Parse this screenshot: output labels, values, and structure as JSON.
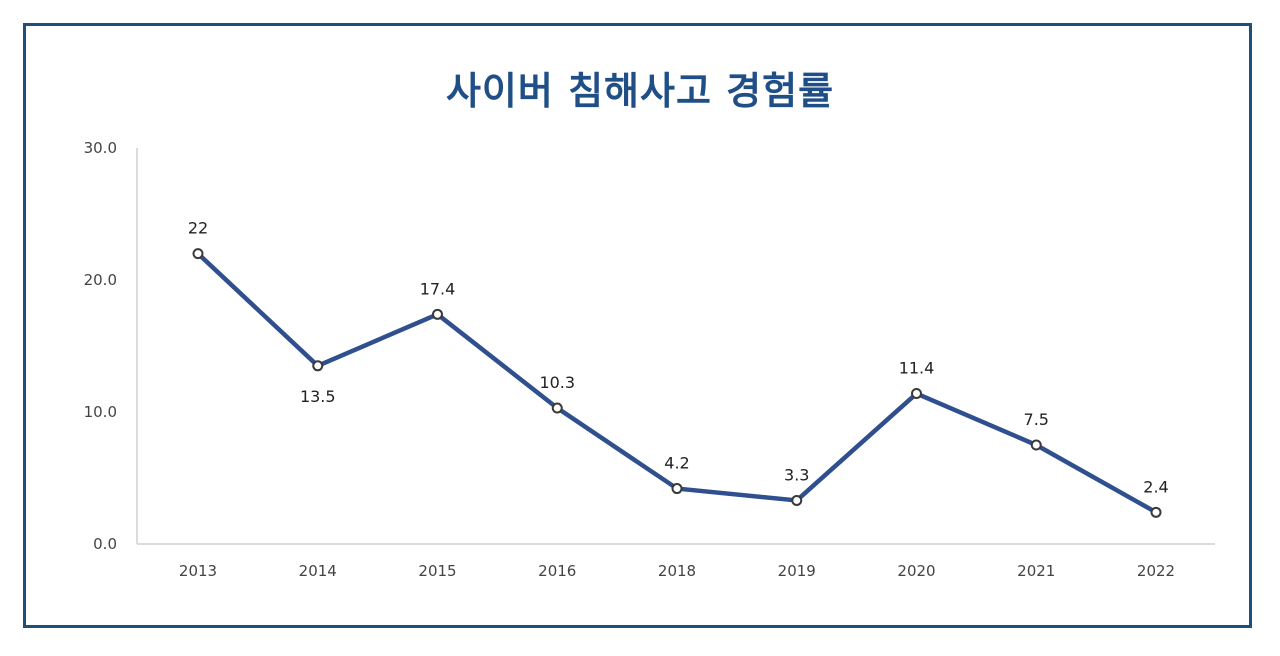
{
  "chart_data": {
    "type": "line",
    "title": "사이버 침해사고 경험률",
    "categories": [
      "2013",
      "2014",
      "2015",
      "2016",
      "2018",
      "2019",
      "2020",
      "2021",
      "2022"
    ],
    "values": [
      22,
      13.5,
      17.4,
      10.3,
      4.2,
      3.3,
      11.4,
      7.5,
      2.4
    ],
    "value_labels": [
      "22",
      "13.5",
      "17.4",
      "10.3",
      "4.2",
      "3.3",
      "11.4",
      "7.5",
      "2.4"
    ],
    "label_positions": [
      "above",
      "below",
      "above",
      "above",
      "above",
      "above",
      "above",
      "above",
      "above"
    ],
    "yticks": [
      "0.0",
      "10.0",
      "20.0",
      "30.0"
    ],
    "ylim": [
      0,
      30
    ],
    "xlabel": "",
    "ylabel": "",
    "grid": false,
    "legend": "none",
    "colors": {
      "line": "#2f4f8f",
      "title": "#1f4f86",
      "frame": "#1e4f7d",
      "axis": "#d0d0d0"
    }
  }
}
